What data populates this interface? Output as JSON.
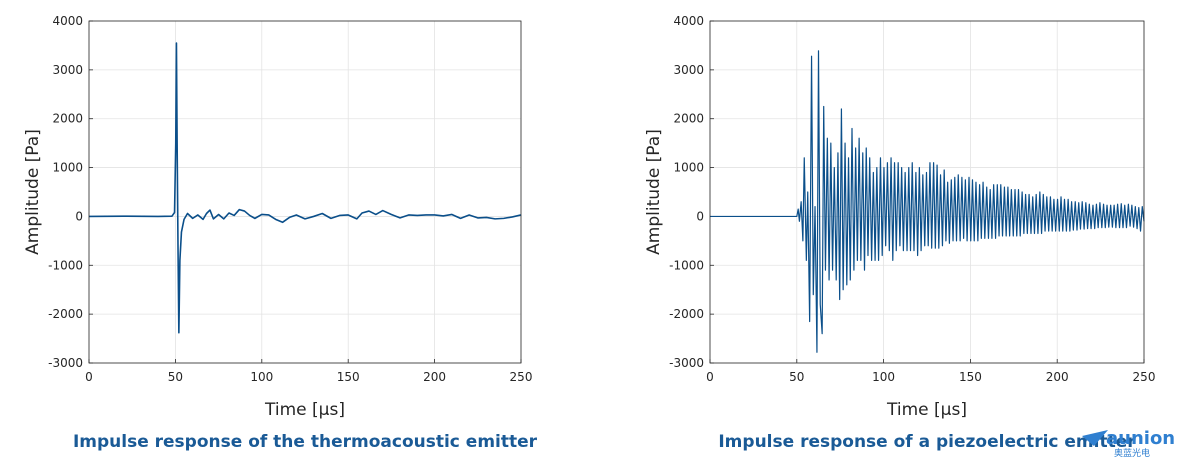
{
  "chart_data": [
    {
      "type": "line",
      "title": "Impulse response of the thermoacoustic emitter",
      "xlabel": "Time [µs]",
      "ylabel": "Amplitude [Pa]",
      "xlim": [
        0,
        250
      ],
      "ylim": [
        -3000,
        4000
      ],
      "xticks": [
        "0",
        "50",
        "100",
        "150",
        "200",
        "250"
      ],
      "yticks": [
        "-3000",
        "-2000",
        "-1000",
        "0",
        "1000",
        "2000",
        "3000",
        "4000"
      ],
      "grid": true,
      "color": "#0b4f8a",
      "series": [
        {
          "x": [
            0,
            20,
            40,
            48,
            49.5,
            50.2,
            50.6,
            51,
            51.5,
            52,
            52.6,
            53.5,
            55,
            57,
            60,
            63,
            66,
            68,
            70,
            72,
            75,
            78,
            81,
            84,
            87,
            90,
            93,
            96,
            100,
            104,
            108,
            112,
            116,
            120,
            125,
            130,
            135,
            140,
            145,
            150,
            155,
            158,
            162,
            166,
            170,
            175,
            180,
            185,
            190,
            195,
            200,
            205,
            210,
            215,
            220,
            225,
            230,
            235,
            240,
            245,
            250
          ],
          "y": [
            0,
            5,
            0,
            5,
            80,
            1500,
            3550,
            1500,
            -600,
            -2380,
            -900,
            -320,
            -60,
            60,
            -40,
            30,
            -60,
            60,
            130,
            -50,
            40,
            -50,
            70,
            20,
            140,
            110,
            20,
            -40,
            40,
            30,
            -60,
            -120,
            -20,
            30,
            -50,
            0,
            60,
            -40,
            20,
            30,
            -50,
            70,
            110,
            40,
            120,
            40,
            -30,
            30,
            20,
            30,
            30,
            10,
            40,
            -40,
            30,
            -30,
            -20,
            -50,
            -40,
            -10,
            30
          ]
        }
      ]
    },
    {
      "type": "line",
      "title": "Impulse response of a piezoelectric emitter",
      "xlabel": "Time [µs]",
      "ylabel": "Amplitude [Pa]",
      "xlim": [
        0,
        250
      ],
      "ylim": [
        -3000,
        4000
      ],
      "xticks": [
        "0",
        "50",
        "100",
        "150",
        "200",
        "250"
      ],
      "yticks": [
        "-3000",
        "-2000",
        "-1000",
        "0",
        "1000",
        "2000",
        "3000",
        "4000"
      ],
      "grid": true,
      "color": "#0b4f8a",
      "series": [
        {
          "x": [
            0,
            50,
            50.8,
            51.5,
            52.5,
            53.5,
            54.3,
            55.5,
            56.3,
            57.4,
            58.5,
            59.5,
            60.5,
            61.6,
            62.5,
            63.5,
            64.6,
            65.5,
            66.5,
            67.6,
            68.6,
            69.6,
            70.6,
            71.6,
            72.7,
            73.7,
            74.7,
            75.7,
            76.7,
            77.8,
            78.8,
            79.8,
            80.8,
            81.8,
            82.9,
            83.9,
            84.9,
            85.9,
            86.9,
            88,
            89,
            90,
            91,
            92,
            93.1,
            94.1,
            95.1,
            96.1,
            97.1,
            98.2,
            99.2,
            100.2,
            101.2,
            102.2,
            103.3,
            104.3,
            105.3,
            106.3,
            107.3,
            108.4,
            109.4,
            110.4,
            111.4,
            112.4,
            113.5,
            114.5,
            115.5,
            116.5,
            117.5,
            118.6,
            119.6,
            120.6,
            121.6,
            122.6,
            123.7,
            124.7,
            125.7,
            126.7,
            127.7,
            128.8,
            129.8,
            130.8,
            131.8,
            132.8,
            133.9,
            134.9,
            135.9,
            136.9,
            137.9,
            139,
            140,
            141,
            142,
            143,
            144.1,
            145.1,
            146.1,
            147.1,
            148.1,
            149.2,
            150.2,
            151.2,
            152.2,
            153.2,
            154.3,
            155.3,
            156.3,
            157.3,
            158.3,
            159.4,
            160.4,
            161.4,
            162.4,
            163.4,
            164.5,
            165.5,
            166.5,
            167.5,
            168.5,
            169.6,
            170.6,
            171.6,
            172.6,
            173.6,
            174.7,
            175.7,
            176.7,
            177.7,
            178.7,
            179.8,
            180.8,
            181.8,
            182.8,
            183.8,
            184.9,
            185.9,
            186.9,
            187.9,
            188.9,
            190,
            191,
            192,
            193,
            194,
            195.1,
            196.1,
            197.1,
            198.1,
            199.1,
            200.2,
            201.2,
            202.2,
            203.2,
            204.2,
            205.3,
            206.3,
            207.3,
            208.3,
            209.3,
            210.4,
            211.4,
            212.4,
            213.4,
            214.4,
            215.5,
            216.5,
            217.5,
            218.5,
            219.5,
            220.6,
            221.6,
            222.6,
            223.6,
            224.6,
            225.7,
            226.7,
            227.7,
            228.7,
            229.7,
            230.8,
            231.8,
            232.8,
            233.8,
            234.8,
            235.9,
            236.9,
            237.9,
            238.9,
            239.9,
            241,
            242,
            243,
            244,
            245,
            246,
            247,
            248,
            249,
            250
          ],
          "y": [
            0,
            0,
            150,
            -100,
            300,
            -500,
            1200,
            -900,
            500,
            -2150,
            3280,
            -1600,
            200,
            -2780,
            3390,
            -1800,
            -2400,
            2250,
            -1100,
            1600,
            -1300,
            1500,
            -1100,
            1000,
            -1300,
            1300,
            -1700,
            2200,
            -1500,
            1500,
            -1400,
            1200,
            -1300,
            1800,
            -1100,
            1400,
            -900,
            1600,
            -900,
            1300,
            -1100,
            1400,
            -800,
            1200,
            -900,
            900,
            -900,
            1000,
            -900,
            1200,
            -800,
            1000,
            -600,
            1100,
            -700,
            1200,
            -900,
            1100,
            -700,
            1100,
            -600,
            1000,
            -700,
            900,
            -700,
            1000,
            -700,
            1100,
            -700,
            900,
            -800,
            1000,
            -700,
            850,
            -600,
            900,
            -600,
            1100,
            -650,
            1100,
            -650,
            1050,
            -650,
            850,
            -600,
            950,
            -500,
            700,
            -550,
            750,
            -500,
            800,
            -500,
            850,
            -500,
            800,
            -450,
            750,
            -500,
            800,
            -500,
            750,
            -500,
            700,
            -500,
            650,
            -450,
            700,
            -450,
            600,
            -450,
            550,
            -450,
            650,
            -450,
            650,
            -400,
            650,
            -400,
            600,
            -400,
            600,
            -400,
            550,
            -400,
            550,
            -400,
            550,
            -400,
            500,
            -350,
            450,
            -350,
            450,
            -350,
            400,
            -350,
            450,
            -350,
            500,
            -350,
            450,
            -300,
            400,
            -300,
            400,
            -300,
            350,
            -300,
            350,
            -300,
            400,
            -300,
            350,
            -300,
            350,
            -300,
            300,
            -280,
            300,
            -280,
            280,
            -260,
            300,
            -260,
            280,
            -250,
            250,
            -250,
            230,
            -250,
            250,
            -230,
            280,
            -230,
            250,
            -230,
            230,
            -220,
            230,
            -220,
            230,
            -230,
            250,
            -230,
            260,
            -230,
            230,
            -230,
            250,
            -200,
            230,
            -220,
            200,
            -250,
            180,
            -300,
            200,
            -100
          ]
        }
      ]
    }
  ],
  "watermark": {
    "name": "aunion",
    "sub": "奥蓝光电"
  }
}
